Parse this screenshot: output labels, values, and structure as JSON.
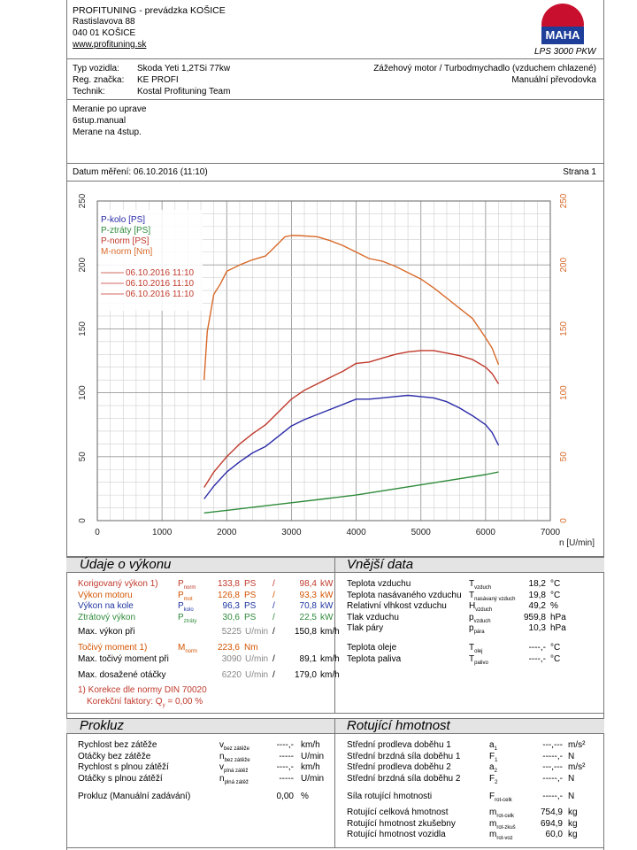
{
  "header": {
    "company": "PROFITUNING - prevádzka KOŠICE",
    "street": "Rastislavova 88",
    "city": "040 01 KOŠICE",
    "web": "www.profituning.sk",
    "logo_text": "MAHA",
    "machine": "LPS 3000 PKW"
  },
  "vehicle": {
    "type_label": "Typ vozidla:",
    "type_value": "Skoda Yeti 1,2TSi 77kw",
    "reg_label": "Reg. značka:",
    "reg_value": "KE PROFI",
    "tech_label": "Technik:",
    "tech_value": "Kostal Profituning Team",
    "engine": "Zážehový motor / Turbodmychadlo (vzduchem chlazené)",
    "gearbox": "Manuální převodovka"
  },
  "notes": [
    "Meranie po uprave",
    "6stup.manual",
    "Merane na 4stup."
  ],
  "meta": {
    "date": "Datum měření: 06.10.2016 (11:10)",
    "page": "Strana 1"
  },
  "chart_data": {
    "type": "line",
    "xlabel": "n [U/min]",
    "xlim": [
      0,
      7000
    ],
    "ylim": [
      0,
      250
    ],
    "x_ticks": [
      0,
      1000,
      2000,
      3000,
      4000,
      5000,
      6000,
      7000
    ],
    "y_ticks": [
      0,
      50,
      100,
      150,
      200,
      250
    ],
    "grid": true,
    "legend": "top-left",
    "legend_entries": [
      "P-kolo [PS]",
      "P-ztráty [PS]",
      "P-norm [PS]",
      "M-norm [Nm]"
    ],
    "legend_dates": [
      "06.10.2016 11:10",
      "06.10.2016 11:10",
      "06.10.2016 11:10"
    ],
    "colors": {
      "p_kolo": "#2a2aa8",
      "p_ztraty": "#2e8b3a",
      "p_norm": "#c0392b",
      "m_norm": "#d86a2a"
    },
    "series": [
      {
        "name": "P-kolo [PS]",
        "color": "#2a2aa8",
        "x": [
          1650,
          1800,
          2000,
          2200,
          2400,
          2600,
          2800,
          3000,
          3200,
          3400,
          3600,
          3800,
          4000,
          4200,
          4400,
          4600,
          4800,
          5000,
          5200,
          5400,
          5600,
          5800,
          6000,
          6100,
          6200
        ],
        "y": [
          17,
          27,
          38,
          46,
          53,
          58,
          66,
          74,
          79,
          83,
          87,
          91,
          95,
          95,
          96,
          97,
          98,
          97,
          96,
          93,
          88,
          82,
          75,
          69,
          59
        ]
      },
      {
        "name": "P-ztráty [PS]",
        "color": "#2e8b3a",
        "x": [
          1650,
          2000,
          2500,
          3000,
          3500,
          4000,
          4500,
          5000,
          5500,
          6000,
          6200
        ],
        "y": [
          6,
          8,
          11,
          14,
          17,
          20,
          24,
          28,
          32,
          36,
          38
        ]
      },
      {
        "name": "P-norm [PS]",
        "color": "#c0392b",
        "x": [
          1650,
          1800,
          2000,
          2200,
          2400,
          2600,
          2800,
          3000,
          3200,
          3400,
          3600,
          3800,
          4000,
          4200,
          4400,
          4600,
          4800,
          5000,
          5200,
          5400,
          5600,
          5800,
          6000,
          6100,
          6200
        ],
        "y": [
          26,
          38,
          50,
          60,
          68,
          75,
          85,
          95,
          102,
          107,
          112,
          117,
          123,
          124,
          127,
          130,
          132,
          133,
          133,
          131,
          129,
          126,
          120,
          115,
          107
        ]
      },
      {
        "name": "M-norm [Nm]",
        "color": "#d86a2a",
        "x": [
          1650,
          1700,
          1800,
          1900,
          2000,
          2200,
          2400,
          2600,
          2800,
          2900,
          3000,
          3100,
          3400,
          3600,
          3800,
          4000,
          4200,
          4400,
          4600,
          4800,
          5000,
          5200,
          5400,
          5600,
          5800,
          6000,
          6100,
          6200
        ],
        "y": [
          110,
          148,
          177,
          185,
          195,
          200,
          204,
          207,
          217,
          222,
          223,
          223,
          222,
          219,
          215,
          210,
          205,
          203,
          199,
          194,
          189,
          182,
          174,
          166,
          158,
          143,
          135,
          122
        ]
      }
    ]
  },
  "performance": {
    "title": "Údaje o výkonu",
    "rows": [
      {
        "label": "Korigovaný výkon 1)",
        "sym": "P",
        "sub": "norm",
        "v1": "133,8",
        "u1": "PS",
        "sep": "/",
        "v2": "98,4",
        "u2": "kW"
      },
      {
        "label": "Výkon motoru",
        "sym": "P",
        "sub": "mot",
        "v1": "126,8",
        "u1": "PS",
        "sep": "/",
        "v2": "93,3",
        "u2": "kW"
      },
      {
        "label": "Výkon na kole",
        "sym": "P",
        "sub": "kolo",
        "v1": "96,3",
        "u1": "PS",
        "sep": "/",
        "v2": "70,8",
        "u2": "kW"
      },
      {
        "label": "Ztrátový výkon",
        "sym": "P",
        "sub": "ztráty",
        "v1": "30,6",
        "u1": "PS",
        "sep": "/",
        "v2": "22,5",
        "u2": "kW"
      }
    ],
    "max_power": {
      "label": "Max. výkon při",
      "rpm": "5225",
      "rpm_unit": "U/min",
      "sep": "/",
      "speed": "150,8",
      "speed_unit": "km/h"
    },
    "torque": {
      "label": "Točivý moment 1)",
      "sym": "M",
      "sub": "norm",
      "value": "223,6",
      "unit": "Nm"
    },
    "max_torque": {
      "label": "Max. točivý moment při",
      "rpm": "3090",
      "rpm_unit": "U/min",
      "sep": "/",
      "speed": "89,1",
      "speed_unit": "km/h"
    },
    "max_rpm": {
      "label": "Max. dosažené otáčky",
      "rpm": "6220",
      "rpm_unit": "U/min",
      "sep": "/",
      "speed": "179,0",
      "speed_unit": "km/h"
    },
    "footnote1": "1) Korekce dle normy DIN 70020",
    "footnote2": "Korekční faktory: Q",
    "footnote2_sub": "y",
    "footnote2_val": " = 0,00 %"
  },
  "external": {
    "title": "Vnější data",
    "rows": [
      {
        "label": "Teplota vzduchu",
        "sym": "T",
        "sub": "vzduch",
        "value": "18,2",
        "unit": "°C"
      },
      {
        "label": "Teplota nasávaného vzduchu",
        "sym": "T",
        "sub": "nasávaný vzduch",
        "value": "19,8",
        "unit": "°C"
      },
      {
        "label": "Relativní vlhkost vzduchu",
        "sym": "H",
        "sub": "vzduch",
        "value": "49,2",
        "unit": "%"
      },
      {
        "label": "Tlak vzduchu",
        "sym": "p",
        "sub": "vzduch",
        "value": "959,8",
        "unit": "hPa"
      },
      {
        "label": "Tlak páry",
        "sym": "p",
        "sub": "pára",
        "value": "10,3",
        "unit": "hPa"
      },
      {
        "label": "Teplota oleje",
        "sym": "T",
        "sub": "olej",
        "value": "----,-",
        "unit": "°C"
      },
      {
        "label": "Teplota paliva",
        "sym": "T",
        "sub": "palivo",
        "value": "----,-",
        "unit": "°C"
      }
    ]
  },
  "prokluz": {
    "title": "Prokluz",
    "rows": [
      {
        "label": "Rychlost bez zátěže",
        "sym": "v",
        "sub": "bez zátěže",
        "value": "----,-",
        "unit": "km/h"
      },
      {
        "label": "Otáčky bez zátěže",
        "sym": "n",
        "sub": "bez zátěže",
        "value": "-----",
        "unit": "U/min"
      },
      {
        "label": "Rychlost s plnou zátěží",
        "sym": "v",
        "sub": "plná zátěž",
        "value": "----,-",
        "unit": "km/h"
      },
      {
        "label": "Otáčky s plnou zátěží",
        "sym": "n",
        "sub": "plná zátěž",
        "value": "-----",
        "unit": "U/min"
      }
    ],
    "manual": {
      "label": "Prokluz (Manuální zadávání)",
      "value": "0,00",
      "unit": "%"
    }
  },
  "rotating": {
    "title": "Rotující hmotnost",
    "rows": [
      {
        "label": "Střední prodleva doběhu 1",
        "sym": "a",
        "sub": "1",
        "value": "---,---",
        "unit": "m/s²"
      },
      {
        "label": "Střední brzdná síla doběhu 1",
        "sym": "F",
        "sub": "1",
        "value": "-----,-",
        "unit": "N"
      },
      {
        "label": "Střední prodleva doběhu 2",
        "sym": "a",
        "sub": "2",
        "value": "---,---",
        "unit": "m/s²"
      },
      {
        "label": "Střední brzdná síla doběhu 2",
        "sym": "F",
        "sub": "2",
        "value": "-----,-",
        "unit": "N"
      },
      {
        "label": "Síla rotující hmotnosti",
        "sym": "F",
        "sub": "rot-celk",
        "value": "-----,-",
        "unit": "N"
      },
      {
        "label": "Rotující celková hmotnost",
        "sym": "m",
        "sub": "rot-celk",
        "value": "754,9",
        "unit": "kg"
      },
      {
        "label": "Rotující hmotnost zkušebny",
        "sym": "m",
        "sub": "rot-zkuš",
        "value": "694,9",
        "unit": "kg"
      },
      {
        "label": "Rotující hmotnost vozidla",
        "sym": "m",
        "sub": "rot-voz",
        "value": "60,0",
        "unit": "kg"
      }
    ]
  }
}
